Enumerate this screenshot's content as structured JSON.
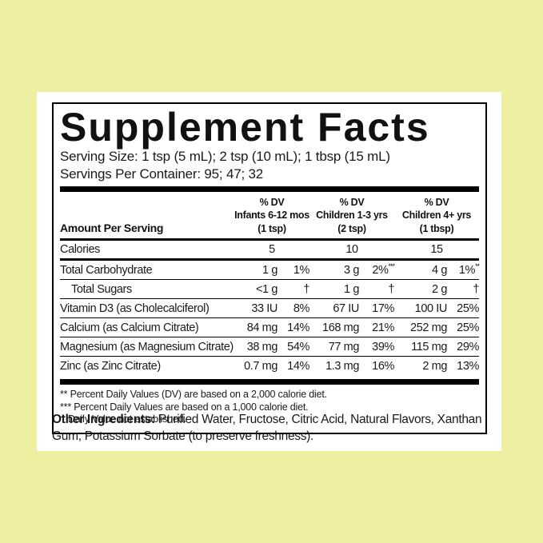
{
  "colors": {
    "page_background": "#efefa2",
    "card_background": "#ffffff",
    "text": "#111111",
    "rule": "#000000"
  },
  "panel": {
    "title": "Supplement Facts",
    "serving_size": "Serving Size: 1 tsp (5 mL); 2 tsp (10 mL); 1 tbsp (15 mL)",
    "servings_per_container": "Servings Per Container: 95; 47; 32"
  },
  "table": {
    "amount_header": "Amount Per Serving",
    "groups": [
      {
        "dv": "% DV",
        "who": "Infants 6-12 mos",
        "serving": "(1 tsp)"
      },
      {
        "dv": "% DV",
        "who": "Children 1-3 yrs",
        "serving": "(2 tsp)"
      },
      {
        "dv": "% DV",
        "who": "Children 4+ yrs",
        "serving": "(1 tbsp)"
      }
    ],
    "calories_row": {
      "name": "Calories",
      "values": [
        "5",
        "10",
        "15"
      ]
    },
    "rows": [
      {
        "name": "Total Carbohydrate",
        "amt1": "1 g",
        "dv1": "1%",
        "sup1": "",
        "amt2": "3 g",
        "dv2": "2%",
        "sup2": "***",
        "amt3": "4 g",
        "dv3": "1%",
        "sup3": "**"
      },
      {
        "name": "Total Sugars",
        "amt1": "<1 g",
        "dv1": "†",
        "sup1": "",
        "amt2": "1 g",
        "dv2": "†",
        "sup2": "",
        "amt3": "2 g",
        "dv3": "†",
        "sup3": ""
      },
      {
        "name": "Vitamin D3 (as Cholecalciferol)",
        "amt1": "33 IU",
        "dv1": "8%",
        "sup1": "",
        "amt2": "67 IU",
        "dv2": "17%",
        "sup2": "",
        "amt3": "100 IU",
        "dv3": "25%",
        "sup3": ""
      },
      {
        "name": "Calcium (as Calcium Citrate)",
        "amt1": "84 mg",
        "dv1": "14%",
        "sup1": "",
        "amt2": "168 mg",
        "dv2": "21%",
        "sup2": "",
        "amt3": "252 mg",
        "dv3": "25%",
        "sup3": ""
      },
      {
        "name": "Magnesium (as Magnesium Citrate)",
        "amt1": "38 mg",
        "dv1": "54%",
        "sup1": "",
        "amt2": "77 mg",
        "dv2": "39%",
        "sup2": "",
        "amt3": "115 mg",
        "dv3": "29%",
        "sup3": ""
      },
      {
        "name": "Zinc (as Zinc Citrate)",
        "amt1": "0.7 mg",
        "dv1": "14%",
        "sup1": "",
        "amt2": "1.3 mg",
        "dv2": "16%",
        "sup2": "",
        "amt3": "2 mg",
        "dv3": "13%",
        "sup3": ""
      }
    ]
  },
  "footnotes": [
    "** Percent Daily Values (DV) are based on a 2,000 calorie diet.",
    "*** Percent Daily Values are based on a 1,000 calorie diet.",
    "† Daily Value not established."
  ],
  "other_ingredients": {
    "label": "Other Ingredients:",
    "text": " Purified Water, Fructose, Citric Acid, Natural Flavors, Xanthan Gum, Potassium Sorbate (to preserve freshness)."
  }
}
